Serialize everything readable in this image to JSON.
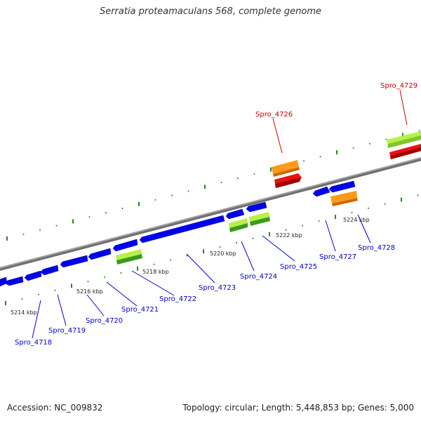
{
  "header": {
    "title": "Serratia proteamaculans 568, complete genome"
  },
  "footer": {
    "accession": "Accession: NC_009832",
    "summary": "Topology: circular; Length: 5,448,853 bp; Genes: 5,000"
  },
  "colors": {
    "backbone": "#808080",
    "cds_blue": "#0000ee",
    "gene_green": "#66cc22",
    "gene_orange": "#ff9900",
    "gene_red": "#ee0000",
    "tick_green": "#228822",
    "label_blue": "#0000cc",
    "label_red": "#cc0000"
  },
  "kbp_labels": [
    "5214 kbp",
    "5216 kbp",
    "5218 kbp",
    "5220 kbp",
    "5222 kbp",
    "5224 kbp"
  ],
  "gene_labels": [
    {
      "text": "Spro_4718",
      "strand": "minus"
    },
    {
      "text": "Spro_4719",
      "strand": "minus"
    },
    {
      "text": "Spro_4720",
      "strand": "minus"
    },
    {
      "text": "Spro_4721",
      "strand": "minus"
    },
    {
      "text": "Spro_4722",
      "strand": "minus"
    },
    {
      "text": "Spro_4723",
      "strand": "minus"
    },
    {
      "text": "Spro_4724",
      "strand": "minus"
    },
    {
      "text": "Spro_4725",
      "strand": "minus"
    },
    {
      "text": "Spro_4727",
      "strand": "minus"
    },
    {
      "text": "Spro_4728",
      "strand": "minus"
    },
    {
      "text": "Spro_4726",
      "strand": "plus"
    },
    {
      "text": "Spro_4729",
      "strand": "plus"
    }
  ]
}
